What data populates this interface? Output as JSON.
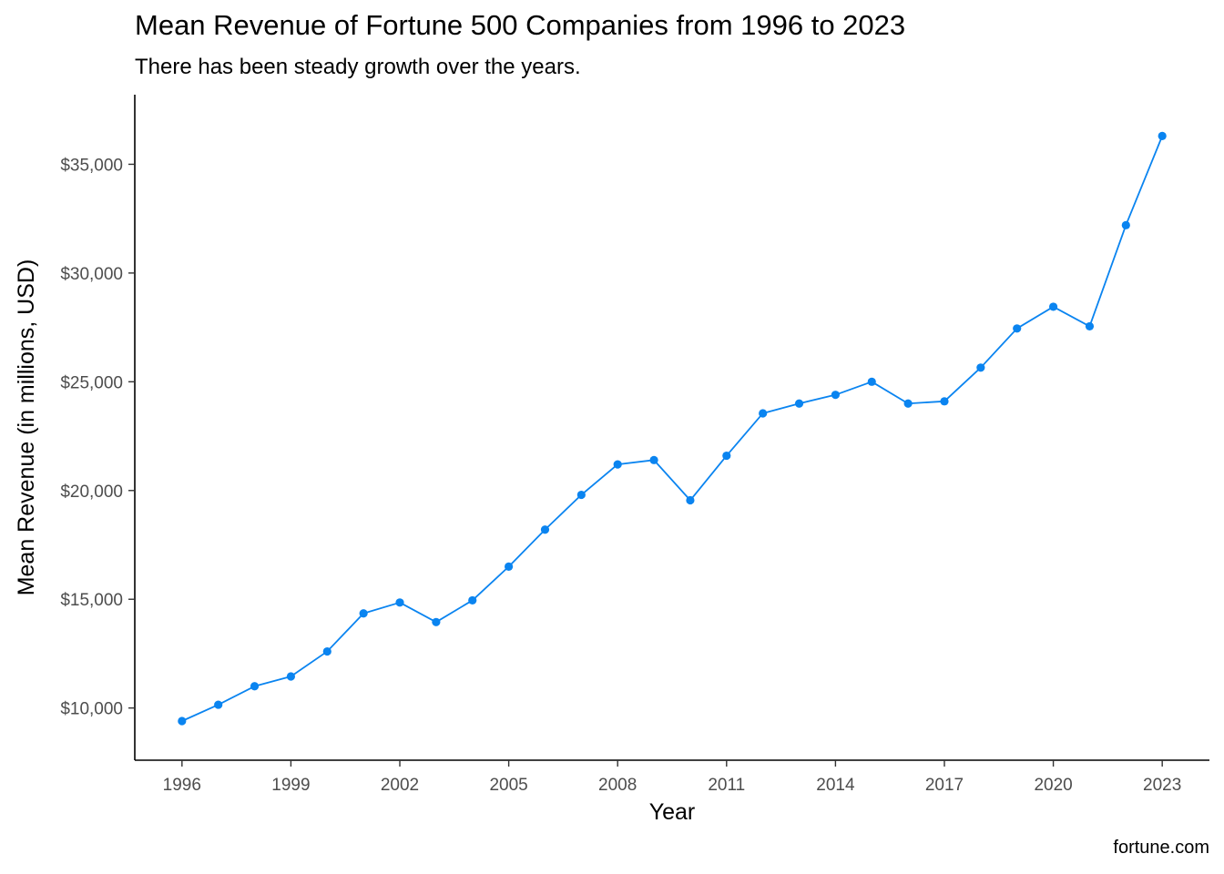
{
  "chart_data": {
    "type": "line",
    "title": "Mean Revenue of Fortune 500 Companies from 1996 to 2023",
    "subtitle": "There has been steady growth over the years.",
    "caption": "fortune.com",
    "xlabel": "Year",
    "ylabel": "Mean Revenue (in millions, USD)",
    "xlim": [
      1994.7,
      2024.3
    ],
    "ylim": [
      7600,
      38200
    ],
    "x_ticks": [
      1996,
      1999,
      2002,
      2005,
      2008,
      2011,
      2014,
      2017,
      2020,
      2023
    ],
    "y_ticks": [
      10000,
      15000,
      20000,
      25000,
      30000,
      35000
    ],
    "y_tick_labels": [
      "$10,000",
      "$15,000",
      "$20,000",
      "$25,000",
      "$30,000",
      "$35,000"
    ],
    "grid": false,
    "color": "#0A84F0",
    "series": [
      {
        "x": [
          1996,
          1997,
          1998,
          1999,
          2000,
          2001,
          2002,
          2003,
          2004,
          2005,
          2006,
          2007,
          2008,
          2009,
          2010,
          2011,
          2012,
          2013,
          2014,
          2015,
          2016,
          2017,
          2018,
          2019,
          2020,
          2021,
          2022,
          2023
        ],
        "values": [
          9400,
          10150,
          11000,
          11450,
          12600,
          14350,
          14850,
          13950,
          14950,
          16500,
          18200,
          19800,
          21200,
          21400,
          19550,
          21600,
          23550,
          24000,
          24400,
          25000,
          24000,
          24100,
          25650,
          27450,
          28450,
          27550,
          32200,
          36300
        ]
      }
    ]
  }
}
